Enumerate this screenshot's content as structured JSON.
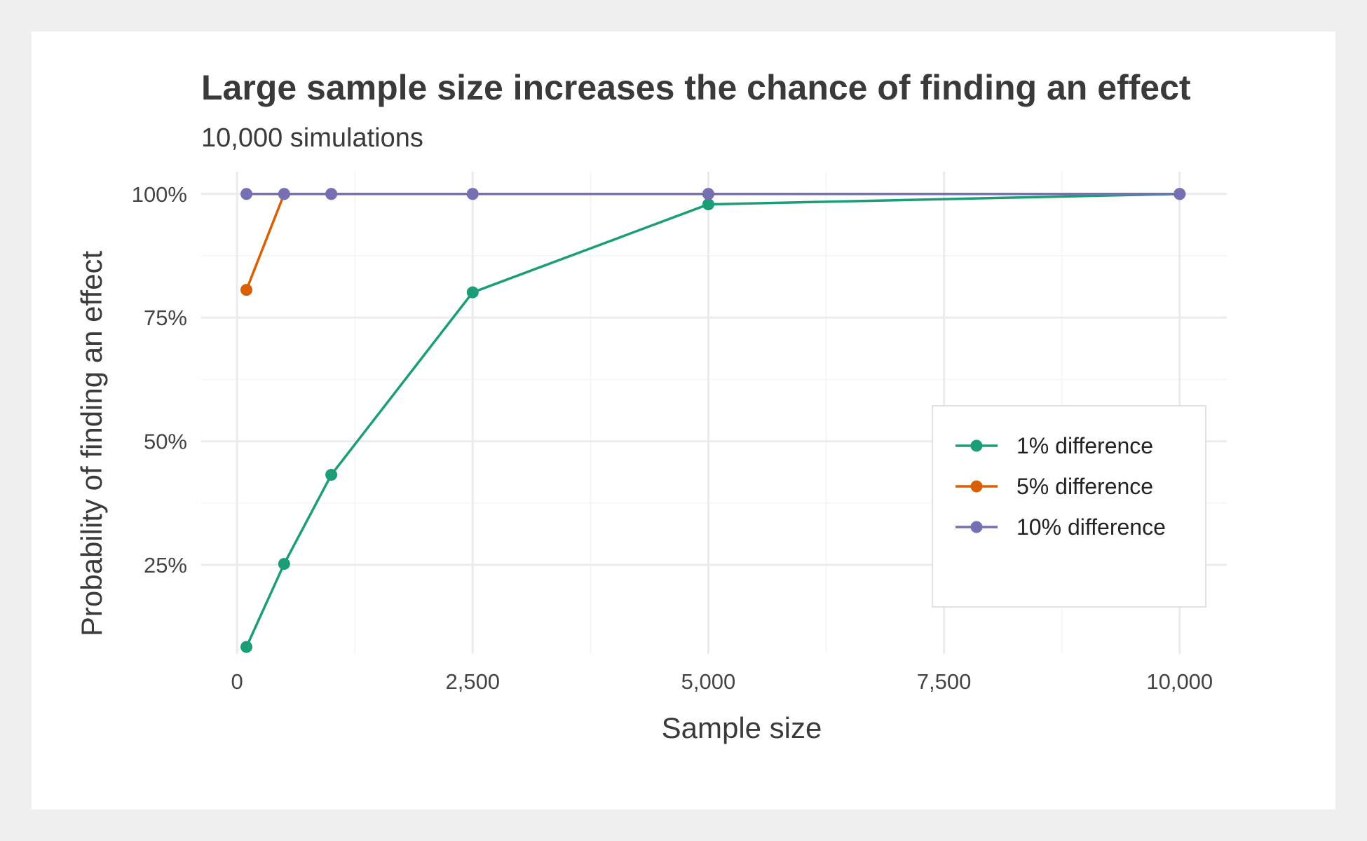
{
  "chart_data": {
    "type": "line",
    "title": "Large sample size increases the chance of finding an effect",
    "subtitle": "10,000 simulations",
    "xlabel": "Sample size",
    "ylabel": "Probability of finding an effect",
    "x_ticks": [
      "0",
      "2,500",
      "5,000",
      "7,500",
      "10,000"
    ],
    "x_tick_values": [
      0,
      2500,
      5000,
      7500,
      10000
    ],
    "y_ticks": [
      "25%",
      "50%",
      "75%",
      "100%"
    ],
    "y_tick_values": [
      25,
      50,
      75,
      100
    ],
    "xlim": [
      -380,
      10500
    ],
    "ylim": [
      7,
      104.5
    ],
    "grid": true,
    "legend_position": "bottom-right",
    "series": [
      {
        "name": "1% difference",
        "color": "#1b9e77",
        "x": [
          100,
          500,
          1000,
          2500,
          5000,
          10000
        ],
        "y": [
          8.4,
          25.2,
          43.2,
          80.1,
          97.9,
          100
        ]
      },
      {
        "name": "5% difference",
        "color": "#d95f02",
        "x": [
          100,
          500,
          1000,
          2500,
          5000,
          10000
        ],
        "y": [
          80.6,
          100,
          100,
          100,
          100,
          100
        ]
      },
      {
        "name": "10% difference",
        "color": "#7570b3",
        "x": [
          100,
          500,
          1000,
          2500,
          5000,
          10000
        ],
        "y": [
          100,
          100,
          100,
          100,
          100,
          100
        ]
      }
    ]
  }
}
